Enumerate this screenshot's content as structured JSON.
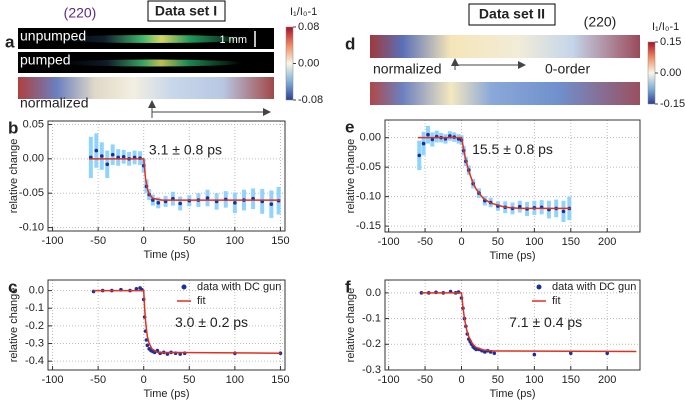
{
  "figure": {
    "left": {
      "title": "Data set I",
      "reflection": "(220)",
      "panel": "a",
      "rows": [
        "unpumped",
        "pumped",
        "normalized"
      ],
      "scale_bar": "1 mm",
      "colorbar": {
        "label": "I₁/I₀-1",
        "lim": [
          -0.08,
          0.08
        ],
        "ticks": [
          0.08,
          {
            "value": 0,
            "label": "0.00"
          },
          -0.08
        ]
      }
    },
    "right": {
      "title": "Data set II",
      "reflection": "(220)",
      "panel": "d",
      "rows": [
        "normalized",
        "0-order"
      ],
      "colorbar": {
        "label": "I₁/I₀-1",
        "lim": [
          -0.15,
          0.15
        ],
        "ticks": [
          0.15,
          {
            "value": 0,
            "label": "0.00"
          },
          -0.15
        ]
      }
    }
  },
  "chart_data": [
    {
      "type": "scatter",
      "panel": "b",
      "annotation": "3.1 ± 0.8 ps",
      "xlabel": "Time (ps)",
      "ylabel": "relative change",
      "xlim": [
        -105,
        155
      ],
      "ylim": [
        -0.105,
        0.055
      ],
      "xticks": [
        -100,
        -50,
        0,
        50,
        100,
        150
      ],
      "yticks": [
        {
          "value": -0.1,
          "label": "-0.10"
        },
        -0.05,
        {
          "value": 0,
          "label": "0.00"
        },
        0.05
      ],
      "grid": true,
      "legend": false,
      "series": [
        {
          "mode": "markers",
          "color": "#1a2fa0",
          "error_color": "#8fd3ff",
          "x": [
            -58,
            -52,
            -46,
            -40,
            -34,
            -28,
            -22,
            -16,
            -10,
            -4,
            0,
            3,
            6,
            10,
            16,
            24,
            32,
            40,
            50,
            60,
            70,
            80,
            90,
            100,
            110,
            120,
            130,
            140,
            148
          ],
          "values": [
            0.002,
            0.012,
            0.004,
            -0.008,
            0.006,
            0.002,
            0.003,
            0.0,
            0.002,
            0.001,
            -0.01,
            -0.04,
            -0.052,
            -0.06,
            -0.064,
            -0.062,
            -0.058,
            -0.065,
            -0.061,
            -0.06,
            -0.057,
            -0.062,
            -0.059,
            -0.064,
            -0.06,
            -0.058,
            -0.062,
            -0.066,
            -0.061
          ],
          "errors": [
            0.03,
            0.025,
            0.02,
            0.02,
            0.015,
            0.012,
            0.01,
            0.01,
            0.01,
            0.01,
            0.01,
            0.01,
            0.008,
            0.008,
            0.008,
            0.008,
            0.01,
            0.01,
            0.008,
            0.01,
            0.012,
            0.012,
            0.012,
            0.015,
            0.015,
            0.015,
            0.018,
            0.02,
            0.02
          ]
        },
        {
          "mode": "line",
          "color": "#e03020",
          "x": [
            -60,
            0,
            2,
            4,
            6,
            10,
            20,
            150
          ],
          "values": [
            0,
            0,
            -0.0286,
            -0.0435,
            -0.0513,
            -0.0576,
            -0.06,
            -0.06
          ]
        }
      ]
    },
    {
      "type": "scatter",
      "panel": "c",
      "annotation": "3.0 ± 0.2 ps",
      "xlabel": "Time (ps)",
      "ylabel": "relative change",
      "xlim": [
        -105,
        155
      ],
      "ylim": [
        -0.45,
        0.06
      ],
      "xticks": [
        -100,
        -50,
        0,
        50,
        100,
        150
      ],
      "yticks": [
        {
          "value": 0,
          "label": "0.0"
        },
        -0.1,
        -0.2,
        -0.3,
        -0.4
      ],
      "grid": true,
      "legend": "upper right",
      "series": [
        {
          "name": "data with DC gun",
          "mode": "markers",
          "color": "#1a2fa0",
          "x": [
            -55,
            -45,
            -35,
            -25,
            -15,
            -8,
            -4,
            -2,
            0,
            1,
            2,
            3,
            4,
            6,
            8,
            10,
            12,
            15,
            18,
            22,
            26,
            30,
            35,
            40,
            45,
            100,
            150
          ],
          "values": [
            -0.005,
            0.0,
            0.0,
            0.005,
            0.0,
            0.01,
            0.015,
            0.005,
            -0.05,
            -0.15,
            -0.23,
            -0.28,
            -0.31,
            -0.33,
            -0.34,
            -0.345,
            -0.35,
            -0.34,
            -0.355,
            -0.35,
            -0.36,
            -0.35,
            -0.355,
            -0.36,
            -0.355,
            -0.355,
            -0.355
          ]
        },
        {
          "name": "fit",
          "mode": "line",
          "color": "#e03020",
          "x": [
            -55,
            0,
            1,
            2,
            3,
            4,
            6,
            9,
            15,
            150
          ],
          "values": [
            0,
            0,
            -0.099,
            -0.17,
            -0.22,
            -0.26,
            -0.3,
            -0.33,
            -0.35,
            -0.355
          ]
        }
      ]
    },
    {
      "type": "scatter",
      "panel": "e",
      "annotation": "15.5 ± 0.8 ps",
      "xlabel": "Time (ps)",
      "ylabel": "relative change",
      "xlim": [
        -105,
        245
      ],
      "ylim": [
        -0.16,
        0.03
      ],
      "xticks": [
        -100,
        -50,
        0,
        50,
        100,
        150,
        200
      ],
      "yticks": [
        {
          "value": 0,
          "label": "0.00"
        },
        -0.05,
        {
          "value": -0.1,
          "label": "-0.10"
        },
        -0.15
      ],
      "grid": true,
      "legend": false,
      "series": [
        {
          "mode": "markers",
          "color": "#1a2fa0",
          "error_color": "#8fd3ff",
          "x": [
            -58,
            -52,
            -46,
            -40,
            -34,
            -28,
            -22,
            -16,
            -10,
            -4,
            0,
            3,
            6,
            10,
            16,
            24,
            32,
            40,
            50,
            60,
            70,
            80,
            90,
            100,
            110,
            120,
            130,
            140,
            148
          ],
          "values": [
            -0.03,
            -0.01,
            0.005,
            -0.003,
            0.002,
            0.0,
            -0.002,
            0.003,
            0.001,
            -0.002,
            -0.004,
            -0.022,
            -0.04,
            -0.055,
            -0.078,
            -0.094,
            -0.107,
            -0.11,
            -0.116,
            -0.118,
            -0.12,
            -0.117,
            -0.121,
            -0.119,
            -0.118,
            -0.122,
            -0.12,
            -0.125,
            -0.12
          ],
          "errors": [
            0.025,
            0.02,
            0.015,
            0.012,
            0.01,
            0.008,
            0.008,
            0.008,
            0.008,
            0.008,
            0.008,
            0.008,
            0.008,
            0.008,
            0.008,
            0.008,
            0.008,
            0.008,
            0.008,
            0.01,
            0.01,
            0.01,
            0.012,
            0.012,
            0.012,
            0.015,
            0.015,
            0.018,
            0.02
          ]
        },
        {
          "mode": "line",
          "color": "#e03020",
          "x": [
            -60,
            0,
            5,
            10,
            15,
            20,
            30,
            40,
            60,
            80,
            150
          ],
          "values": [
            0,
            0,
            -0.033,
            -0.057,
            -0.074,
            -0.087,
            -0.103,
            -0.111,
            -0.118,
            -0.12,
            -0.12
          ]
        }
      ]
    },
    {
      "type": "scatter",
      "panel": "f",
      "annotation": "7.1 ± 0.4 ps",
      "xlabel": "Time (ps)",
      "ylabel": "relative change",
      "xlim": [
        -105,
        245
      ],
      "ylim": [
        -0.3,
        0.05
      ],
      "xticks": [
        -100,
        -50,
        0,
        50,
        100,
        150,
        200
      ],
      "yticks": [
        {
          "value": 0,
          "label": "0.0"
        },
        -0.1,
        -0.2,
        -0.3
      ],
      "grid": true,
      "legend": "upper right",
      "series": [
        {
          "name": "data with DC gun",
          "mode": "markers",
          "color": "#1a2fa0",
          "x": [
            -55,
            -45,
            -35,
            -25,
            -15,
            -8,
            -4,
            0,
            2,
            4,
            6,
            8,
            10,
            12,
            14,
            16,
            18,
            20,
            24,
            28,
            32,
            36,
            40,
            45,
            100,
            150,
            200
          ],
          "values": [
            0.0,
            0.0,
            0.002,
            0.0,
            0.005,
            0.0,
            0.003,
            -0.02,
            -0.06,
            -0.1,
            -0.13,
            -0.16,
            -0.18,
            -0.19,
            -0.2,
            -0.21,
            -0.215,
            -0.22,
            -0.22,
            -0.225,
            -0.23,
            -0.225,
            -0.23,
            -0.235,
            -0.24,
            -0.235,
            -0.235
          ]
        },
        {
          "name": "fit",
          "mode": "line",
          "color": "#e03020",
          "x": [
            -55,
            0,
            2,
            4,
            7,
            10,
            15,
            20,
            30,
            45,
            240
          ],
          "values": [
            0,
            0,
            -0.056,
            -0.099,
            -0.143,
            -0.17,
            -0.198,
            -0.212,
            -0.222,
            -0.226,
            -0.228
          ]
        }
      ]
    }
  ]
}
